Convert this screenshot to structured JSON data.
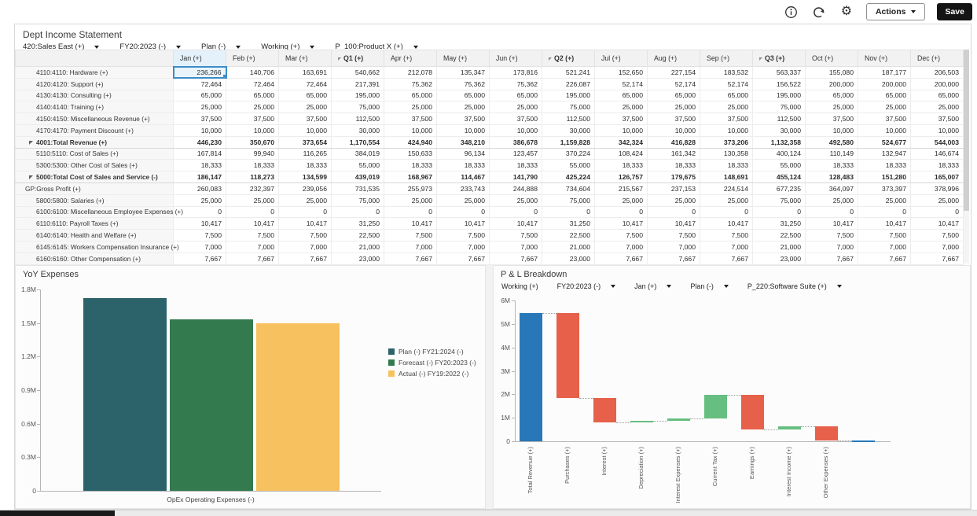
{
  "toolbar": {
    "icons": [
      {
        "name": "info-icon"
      },
      {
        "name": "refresh-icon"
      },
      {
        "name": "settings-icon"
      }
    ],
    "actions_label": "Actions",
    "save_label": "Save"
  },
  "form": {
    "title": "Dept Income Statement",
    "pov": [
      {
        "label": "420:Sales East (+)",
        "dropdown": true
      },
      {
        "label": "FY20:2023 (-)",
        "dropdown": true
      },
      {
        "label": "Plan (-)",
        "dropdown": true
      },
      {
        "label": "Working (+)",
        "dropdown": true
      },
      {
        "label": "P_100:Product X (+)",
        "dropdown": true
      }
    ]
  },
  "grid": {
    "columns": [
      "Jan (+)",
      "Feb (+)",
      "Mar (+)",
      "Q1 (+)",
      "Apr (+)",
      "May (+)",
      "Jun (+)",
      "Q2 (+)",
      "Jul (+)",
      "Aug (+)",
      "Sep (+)",
      "Q3 (+)",
      "Oct (+)",
      "Nov (+)",
      "Dec (+)"
    ],
    "summary_columns": [
      3,
      7,
      11
    ],
    "selected_cell": {
      "row": 0,
      "col": 0,
      "value": "236,266"
    },
    "rows": [
      {
        "label": "4110:4110: Hardware (+)",
        "level": 3,
        "bold": false,
        "collapse": false,
        "values": [
          "236,266",
          "140,706",
          "163,691",
          "540,662",
          "212,078",
          "135,347",
          "173,816",
          "521,241",
          "152,650",
          "227,154",
          "183,532",
          "563,337",
          "155,080",
          "187,177",
          "206,503"
        ]
      },
      {
        "label": "4120:4120: Support (+)",
        "level": 3,
        "bold": false,
        "collapse": false,
        "values": [
          "72,464",
          "72,464",
          "72,464",
          "217,391",
          "75,362",
          "75,362",
          "75,362",
          "226,087",
          "52,174",
          "52,174",
          "52,174",
          "156,522",
          "200,000",
          "200,000",
          "200,000"
        ]
      },
      {
        "label": "4130:4130: Consulting (+)",
        "level": 3,
        "bold": false,
        "collapse": false,
        "values": [
          "65,000",
          "65,000",
          "65,000",
          "195,000",
          "65,000",
          "65,000",
          "65,000",
          "195,000",
          "65,000",
          "65,000",
          "65,000",
          "195,000",
          "65,000",
          "65,000",
          "65,000"
        ]
      },
      {
        "label": "4140:4140: Training (+)",
        "level": 3,
        "bold": false,
        "collapse": false,
        "values": [
          "25,000",
          "25,000",
          "25,000",
          "75,000",
          "25,000",
          "25,000",
          "25,000",
          "75,000",
          "25,000",
          "25,000",
          "25,000",
          "75,000",
          "25,000",
          "25,000",
          "25,000"
        ]
      },
      {
        "label": "4150:4150: Miscellaneous Revenue (+)",
        "level": 3,
        "bold": false,
        "collapse": false,
        "values": [
          "37,500",
          "37,500",
          "37,500",
          "112,500",
          "37,500",
          "37,500",
          "37,500",
          "112,500",
          "37,500",
          "37,500",
          "37,500",
          "112,500",
          "37,500",
          "37,500",
          "37,500"
        ]
      },
      {
        "label": "4170:4170: Payment Discount (+)",
        "level": 3,
        "bold": false,
        "collapse": false,
        "values": [
          "10,000",
          "10,000",
          "10,000",
          "30,000",
          "10,000",
          "10,000",
          "10,000",
          "30,000",
          "10,000",
          "10,000",
          "10,000",
          "30,000",
          "10,000",
          "10,000",
          "10,000"
        ]
      },
      {
        "label": "4001:Total Revenue (+)",
        "level": 2,
        "bold": true,
        "collapse": true,
        "values": [
          "446,230",
          "350,670",
          "373,654",
          "1,170,554",
          "424,940",
          "348,210",
          "386,678",
          "1,159,828",
          "342,324",
          "416,828",
          "373,206",
          "1,132,358",
          "492,580",
          "524,677",
          "544,003"
        ]
      },
      {
        "label": "5110:5110: Cost of Sales (+)",
        "level": 3,
        "bold": false,
        "collapse": false,
        "values": [
          "167,814",
          "99,940",
          "116,265",
          "384,019",
          "150,633",
          "96,134",
          "123,457",
          "370,224",
          "108,424",
          "161,342",
          "130,358",
          "400,124",
          "110,149",
          "132,947",
          "146,674"
        ]
      },
      {
        "label": "5300:5300: Other Cost of Sales (+)",
        "level": 3,
        "bold": false,
        "collapse": false,
        "values": [
          "18,333",
          "18,333",
          "18,333",
          "55,000",
          "18,333",
          "18,333",
          "18,333",
          "55,000",
          "18,333",
          "18,333",
          "18,333",
          "55,000",
          "18,333",
          "18,333",
          "18,333"
        ]
      },
      {
        "label": "5000:Total Cost of Sales and Service (-)",
        "level": 2,
        "bold": true,
        "collapse": true,
        "values": [
          "186,147",
          "118,273",
          "134,599",
          "439,019",
          "168,967",
          "114,467",
          "141,790",
          "425,224",
          "126,757",
          "179,675",
          "148,691",
          "455,124",
          "128,483",
          "151,280",
          "165,007"
        ]
      },
      {
        "label": "GP:Gross Profit (+)",
        "level": 1,
        "bold": false,
        "collapse": false,
        "values": [
          "260,083",
          "232,397",
          "239,056",
          "731,535",
          "255,973",
          "233,743",
          "244,888",
          "734,604",
          "215,567",
          "237,153",
          "224,514",
          "677,235",
          "364,097",
          "373,397",
          "378,996"
        ]
      },
      {
        "label": "5800:5800: Salaries (+)",
        "level": 3,
        "bold": false,
        "collapse": false,
        "values": [
          "25,000",
          "25,000",
          "25,000",
          "75,000",
          "25,000",
          "25,000",
          "25,000",
          "75,000",
          "25,000",
          "25,000",
          "25,000",
          "75,000",
          "25,000",
          "25,000",
          "25,000"
        ]
      },
      {
        "label": "6100:6100: Miscellaneous Employee Expenses (+)",
        "level": 3,
        "bold": false,
        "collapse": false,
        "values": [
          "0",
          "0",
          "0",
          "0",
          "0",
          "0",
          "0",
          "0",
          "0",
          "0",
          "0",
          "0",
          "0",
          "0",
          "0"
        ]
      },
      {
        "label": "6110:6110: Payroll Taxes (+)",
        "level": 3,
        "bold": false,
        "collapse": false,
        "values": [
          "10,417",
          "10,417",
          "10,417",
          "31,250",
          "10,417",
          "10,417",
          "10,417",
          "31,250",
          "10,417",
          "10,417",
          "10,417",
          "31,250",
          "10,417",
          "10,417",
          "10,417"
        ]
      },
      {
        "label": "6140:6140: Health and Welfare (+)",
        "level": 3,
        "bold": false,
        "collapse": false,
        "values": [
          "7,500",
          "7,500",
          "7,500",
          "22,500",
          "7,500",
          "7,500",
          "7,500",
          "22,500",
          "7,500",
          "7,500",
          "7,500",
          "22,500",
          "7,500",
          "7,500",
          "7,500"
        ]
      },
      {
        "label": "6145:6145: Workers Compensation Insurance (+)",
        "level": 3,
        "bold": false,
        "collapse": false,
        "values": [
          "7,000",
          "7,000",
          "7,000",
          "21,000",
          "7,000",
          "7,000",
          "7,000",
          "21,000",
          "7,000",
          "7,000",
          "7,000",
          "21,000",
          "7,000",
          "7,000",
          "7,000"
        ]
      },
      {
        "label": "6160:6160: Other Compensation (+)",
        "level": 3,
        "bold": false,
        "collapse": false,
        "values": [
          "7,667",
          "7,667",
          "7,667",
          "23,000",
          "7,667",
          "7,667",
          "7,667",
          "23,000",
          "7,667",
          "7,667",
          "7,667",
          "23,000",
          "7,667",
          "7,667",
          "7,667"
        ]
      }
    ]
  },
  "chart_data": [
    {
      "type": "bar",
      "title": "YoY Expenses",
      "categories": [
        "OpEx Operating Expenses (-)"
      ],
      "series": [
        {
          "name": "Plan (-) FY21:2024 (-)",
          "values": [
            1720000
          ],
          "color": "#2c636a"
        },
        {
          "name": "Forecast (-) FY20:2023 (-)",
          "values": [
            1530000
          ],
          "color": "#337a4e"
        },
        {
          "name": "Actual (-) FY19:2022 (-)",
          "values": [
            1500000
          ],
          "color": "#f7c15f"
        }
      ],
      "xlabel": "OpEx Operating Expenses (-)",
      "ylabel": "",
      "ylim": [
        0,
        1800000
      ],
      "yticks": [
        0,
        300000,
        600000,
        900000,
        1200000,
        1500000,
        1800000
      ],
      "ytick_labels": [
        "0",
        "0.3M",
        "0.6M",
        "0.9M",
        "1.2M",
        "1.5M",
        "1.8M"
      ],
      "grid": false,
      "legend_position": "right"
    },
    {
      "type": "waterfall",
      "title": "P & L Breakdown",
      "pov": [
        {
          "label": "Working (+)",
          "dropdown": false
        },
        {
          "label": "FY20:2023 (-)",
          "dropdown": true
        },
        {
          "label": "Jan (+)",
          "dropdown": true
        },
        {
          "label": "Plan (-)",
          "dropdown": true
        },
        {
          "label": "P_220:Software Suite (+)",
          "dropdown": true
        }
      ],
      "categories": [
        "Total Revenue (+)",
        "Purchases (+)",
        "Interest (+)",
        "Depreciation (+)",
        "Interest Expenses (+)",
        "Current Tax (+)",
        "Earnings (+)",
        "Interest Income (+)",
        "Other Expenses (+)",
        ""
      ],
      "bars": [
        {
          "category": "Total Revenue (+)",
          "start": 0,
          "end": 5450000,
          "type": "total"
        },
        {
          "category": "Purchases (+)",
          "start": 5450000,
          "end": 1840000,
          "type": "decrease"
        },
        {
          "category": "Interest (+)",
          "start": 1840000,
          "end": 800000,
          "type": "decrease"
        },
        {
          "category": "Depreciation (+)",
          "start": 800000,
          "end": 880000,
          "type": "increase"
        },
        {
          "category": "Interest Expenses (+)",
          "start": 880000,
          "end": 970000,
          "type": "increase"
        },
        {
          "category": "Current Tax (+)",
          "start": 970000,
          "end": 1980000,
          "type": "increase"
        },
        {
          "category": "Earnings (+)",
          "start": 1980000,
          "end": 500000,
          "type": "decrease"
        },
        {
          "category": "Interest Income (+)",
          "start": 500000,
          "end": 630000,
          "type": "increase"
        },
        {
          "category": "Other Expenses (+)",
          "start": 630000,
          "end": 50000,
          "type": "decrease"
        },
        {
          "category": "",
          "start": 0,
          "end": 50000,
          "type": "total"
        }
      ],
      "colors": {
        "total": "#2878b9",
        "decrease": "#e7604a",
        "increase": "#66bf80"
      },
      "ylim": [
        0,
        6000000
      ],
      "yticks": [
        0,
        1000000,
        2000000,
        3000000,
        4000000,
        5000000,
        6000000
      ],
      "ytick_labels": [
        "0",
        "1M",
        "2M",
        "3M",
        "4M",
        "5M",
        "6M"
      ],
      "grid": false
    }
  ]
}
